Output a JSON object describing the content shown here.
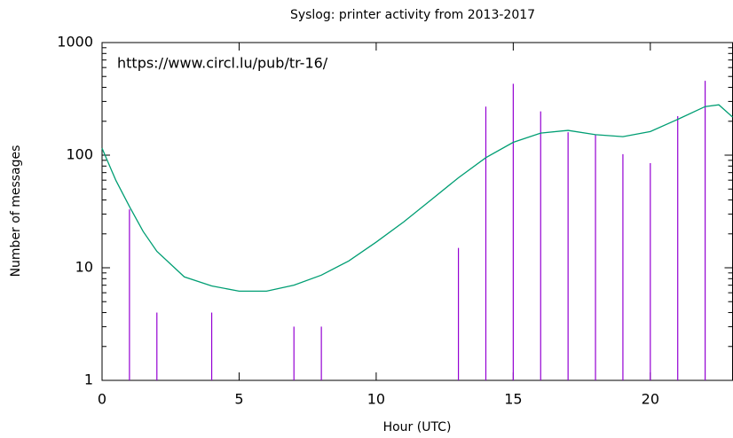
{
  "chart_data": {
    "type": "impulses",
    "title": "Syslog: printer activity from 2013-2017",
    "annotation": "https://www.circl.lu/pub/tr-16/",
    "xlabel": "Hour (UTC)",
    "ylabel": "Number of messages",
    "xlim": [
      0,
      23
    ],
    "xticks": [
      0,
      5,
      10,
      15,
      20
    ],
    "ylim": [
      1,
      1000
    ],
    "yticks": [
      1,
      10,
      100,
      1000
    ],
    "log_y": true,
    "series": [
      {
        "type": "impulses",
        "color": "#9400d3",
        "x": [
          1,
          2,
          4,
          7,
          8,
          13,
          14,
          15,
          16,
          17,
          18,
          19,
          20,
          21,
          22
        ],
        "values": [
          33,
          4,
          4,
          3,
          3,
          15,
          270,
          430,
          245,
          160,
          152,
          102,
          85,
          222,
          458
        ]
      },
      {
        "type": "line",
        "color": "#009e73",
        "x": [
          0,
          0.5,
          1,
          1.5,
          2,
          3,
          4,
          5,
          6,
          7,
          8,
          9,
          10,
          11,
          12,
          13,
          14,
          15,
          16,
          17,
          18,
          19,
          20,
          21,
          22,
          22.5,
          23
        ],
        "values": [
          115,
          60,
          35,
          21,
          14,
          8.3,
          6.9,
          6.2,
          6.2,
          7,
          8.6,
          11.5,
          16.9,
          25.5,
          40,
          63,
          95,
          130,
          157,
          166,
          152,
          146,
          162,
          208,
          270,
          280,
          218
        ]
      }
    ]
  }
}
